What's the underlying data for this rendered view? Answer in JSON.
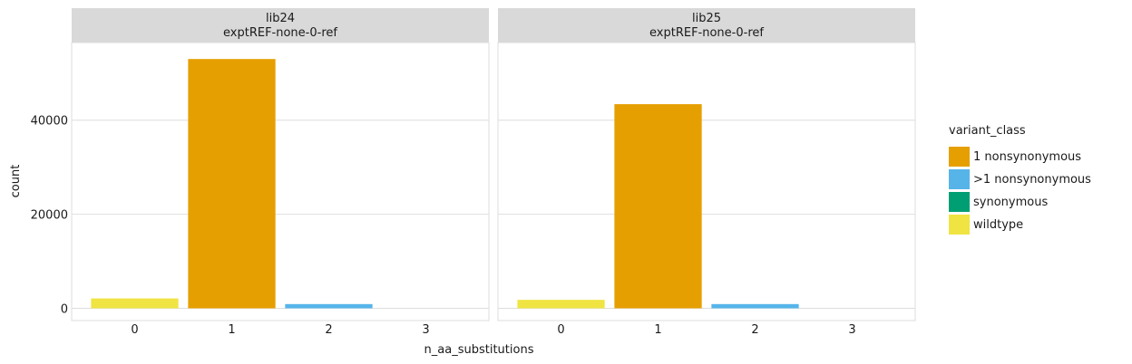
{
  "chart_data": {
    "type": "bar",
    "xlabel": "n_aa_substitutions",
    "ylabel": "count",
    "ylim": [
      -2600,
      56500
    ],
    "yticks": [
      0,
      20000,
      40000
    ],
    "ytick_labels": [
      "0",
      "20000",
      "40000"
    ],
    "categories": [
      "0",
      "1",
      "2",
      "3"
    ],
    "grid": true,
    "legend": {
      "title": "variant_class",
      "placement": "right",
      "entries": [
        {
          "name": "1 nonsynonymous",
          "color": "#E69F00"
        },
        {
          "name": ">1 nonsynonymous",
          "color": "#56B4E9"
        },
        {
          "name": "synonymous",
          "color": "#009E73"
        },
        {
          "name": "wildtype",
          "color": "#F0E442"
        }
      ]
    },
    "facets": [
      {
        "strip_line1": "lib24",
        "strip_line2": "exptREF-none-0-ref",
        "bars": [
          {
            "category": "0",
            "class": "wildtype",
            "value": 2100
          },
          {
            "category": "1",
            "class": "1 nonsynonymous",
            "value": 53000
          },
          {
            "category": "2",
            "class": ">1 nonsynonymous",
            "value": 900
          },
          {
            "category": "3",
            "class": ">1 nonsynonymous",
            "value": 0
          }
        ]
      },
      {
        "strip_line1": "lib25",
        "strip_line2": "exptREF-none-0-ref",
        "bars": [
          {
            "category": "0",
            "class": "wildtype",
            "value": 1800
          },
          {
            "category": "1",
            "class": "1 nonsynonymous",
            "value": 43400
          },
          {
            "category": "2",
            "class": ">1 nonsynonymous",
            "value": 900
          },
          {
            "category": "3",
            "class": ">1 nonsynonymous",
            "value": 0
          }
        ]
      }
    ]
  }
}
